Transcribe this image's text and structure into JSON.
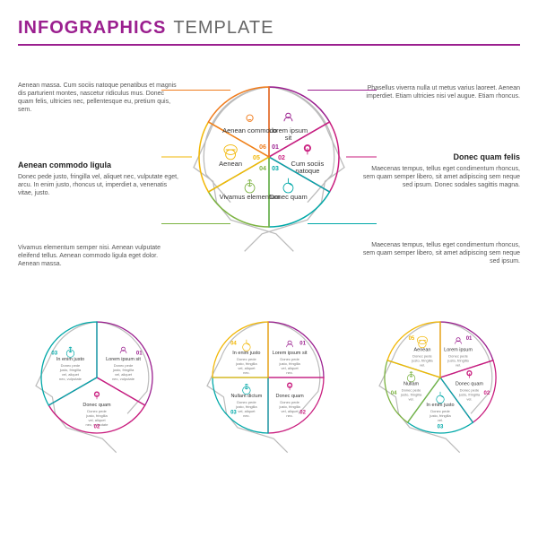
{
  "title": {
    "bold": "INFOGRAPHICS",
    "light": "TEMPLATE",
    "color": "#9b1f8f"
  },
  "colors": {
    "purple": "#9b1f8f",
    "magenta": "#c91d7e",
    "teal": "#00a8a8",
    "green": "#7cb342",
    "yellow": "#f2b705",
    "orange": "#f07c1d",
    "grey": "#777777"
  },
  "main_head": {
    "segments": [
      {
        "num": "01",
        "label": "Lorem ipsum sit",
        "icon": "person",
        "color": "#9b1f8f"
      },
      {
        "num": "02",
        "label": "Cum sociis natoque",
        "icon": "pin",
        "color": "#c91d7e"
      },
      {
        "num": "03",
        "label": "Donec quam",
        "icon": "chart",
        "color": "#00a8a8"
      },
      {
        "num": "04",
        "label": "Vivamus elementum",
        "icon": "dollar",
        "color": "#7cb342"
      },
      {
        "num": "05",
        "label": "Aenean",
        "icon": "globe",
        "color": "#f2b705"
      },
      {
        "num": "06",
        "label": "Aenean commodo",
        "icon": "bulb",
        "color": "#f07c1d"
      }
    ]
  },
  "side_left": [
    {
      "heading": "",
      "body": "Aenean massa. Cum sociis natoque penatibus et magnis dis parturient montes, nascetur ridiculus mus. Donec quam felis, ultricies nec, pellentesque eu, pretium quis, sem."
    },
    {
      "heading": "Aenean commodo ligula",
      "body": "Donec pede justo, fringilla vel, aliquet nec, vulputate eget, arcu. In enim justo, rhoncus ut, imperdiet a, venenatis vitae, justo."
    },
    {
      "heading": "",
      "body": "Vivamus elementum semper nisi. Aenean vulputate eleifend tellus. Aenean commodo ligula eget dolor. Aenean massa."
    }
  ],
  "side_right": [
    {
      "heading": "",
      "body": "Phasellus viverra nulla ut metus varius laoreet. Aenean imperdiet. Etiam ultricies nisi vel augue. Etiam rhoncus."
    },
    {
      "heading": "Donec quam felis",
      "body": "Maecenas tempus, tellus eget condimentum rhoncus, sem quam semper libero, sit amet adipiscing sem neque sed ipsum. Donec sodales sagittis magna."
    },
    {
      "heading": "",
      "body": "Maecenas tempus, tellus eget condimentum rhoncus, sem quam semper libero, sit amet adipiscing sem neque sed ipsum."
    }
  ],
  "small_heads": [
    {
      "segments": [
        {
          "num": "01",
          "label": "Lorem ipsum sit",
          "icon": "person",
          "color": "#9b1f8f",
          "body": "Donec pede justo, fringilla vel, aliquet nec, vulputate eget, arcu."
        },
        {
          "num": "02",
          "label": "Donec quam",
          "icon": "pin",
          "color": "#c91d7e",
          "body": "Donec pede justo, fringilla vel, aliquet nec, vulputate eget, arcu."
        },
        {
          "num": "03",
          "label": "In enim justo",
          "icon": "dollar",
          "color": "#00a8a8",
          "body": "Donec pede justo, fringilla vel, aliquet nec, vulputate eget, arcu."
        }
      ]
    },
    {
      "segments": [
        {
          "num": "01",
          "label": "Lorem ipsum sit",
          "icon": "person",
          "color": "#9b1f8f",
          "body": "Donec pede justo, fringilla vel, aliquet nec."
        },
        {
          "num": "02",
          "label": "Donec quam",
          "icon": "pin",
          "color": "#c91d7e",
          "body": "Donec pede justo, fringilla vel, aliquet nec."
        },
        {
          "num": "03",
          "label": "Nullam dictum",
          "icon": "dollar",
          "color": "#00a8a8",
          "body": "Donec pede justo, fringilla vel, aliquet nec."
        },
        {
          "num": "04",
          "label": "In enim justo",
          "icon": "chart",
          "color": "#f2b705",
          "body": "Donec pede justo, fringilla vel, aliquet nec."
        }
      ]
    },
    {
      "segments": [
        {
          "num": "01",
          "label": "Lorem ipsum",
          "icon": "person",
          "color": "#9b1f8f",
          "body": "Donec pede justo, fringilla vel."
        },
        {
          "num": "02",
          "label": "Donec quam",
          "icon": "pin",
          "color": "#c91d7e",
          "body": "Donec pede justo, fringilla vel."
        },
        {
          "num": "03",
          "label": "In enim justo",
          "icon": "chart",
          "color": "#00a8a8",
          "body": "Donec pede justo, fringilla vel."
        },
        {
          "num": "04",
          "label": "Nullam",
          "icon": "dollar",
          "color": "#7cb342",
          "body": "Donec pede justo, fringilla vel."
        },
        {
          "num": "05",
          "label": "Aenean",
          "icon": "globe",
          "color": "#f2b705",
          "body": "Donec pede justo, fringilla vel."
        }
      ]
    }
  ]
}
